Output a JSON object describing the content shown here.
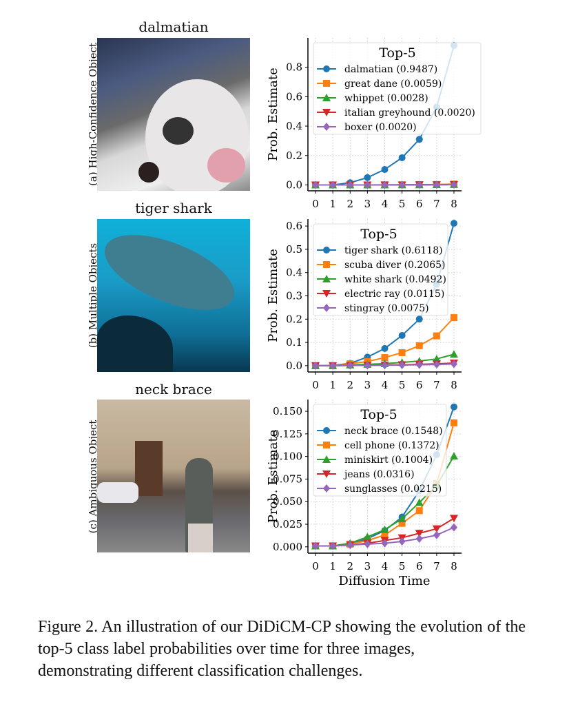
{
  "panels": [
    {
      "title": "dalmatian",
      "side_label": "(a) High-Confidence Object"
    },
    {
      "title": "tiger shark",
      "side_label": "(b) Multiple Objects"
    },
    {
      "title": "neck brace",
      "side_label": "(c) Ambiguous Object"
    }
  ],
  "colors": [
    "#1f77b4",
    "#ff7f0e",
    "#2ca02c",
    "#d62728",
    "#9467bd"
  ],
  "markers": [
    "circle",
    "square",
    "triangle-up",
    "triangle-down",
    "diamond"
  ],
  "chart_data": [
    {
      "type": "line",
      "x": [
        0,
        1,
        2,
        3,
        4,
        5,
        6,
        7,
        8
      ],
      "ylabel": "Prob. Estimate",
      "xlabel": "",
      "ylim": [
        -0.04,
        1.0
      ],
      "yticks": [
        "0.0",
        "0.2",
        "0.4",
        "0.6",
        "0.8"
      ],
      "ytick_values": [
        0,
        0.2,
        0.4,
        0.6,
        0.8
      ],
      "xticks": [
        "0",
        "1",
        "2",
        "3",
        "4",
        "5",
        "6",
        "7",
        "8"
      ],
      "grid": true,
      "legend_title": "Top-5",
      "legend_position": "top-right",
      "series": [
        {
          "name": "dalmatian (0.9487)",
          "values": [
            0,
            0,
            0.015,
            0.05,
            0.105,
            0.185,
            0.31,
            0.53,
            0.9487
          ]
        },
        {
          "name": "great dane (0.0059)",
          "values": [
            0,
            0,
            0,
            0,
            0.001,
            0.001,
            0.002,
            0.003,
            0.0059
          ]
        },
        {
          "name": "whippet (0.0028)",
          "values": [
            0,
            0,
            0,
            0,
            0,
            0.001,
            0.001,
            0.002,
            0.0028
          ]
        },
        {
          "name": "italian greyhound (0.0020)",
          "values": [
            0,
            0,
            0,
            0,
            0,
            0,
            0.001,
            0.001,
            0.002
          ]
        },
        {
          "name": "boxer (0.0020)",
          "values": [
            0,
            0,
            0,
            0,
            0,
            0,
            0.001,
            0.001,
            0.002
          ]
        }
      ]
    },
    {
      "type": "line",
      "x": [
        0,
        1,
        2,
        3,
        4,
        5,
        6,
        7,
        8
      ],
      "ylabel": "Prob. Estimate",
      "xlabel": "",
      "ylim": [
        -0.027,
        0.63
      ],
      "yticks": [
        "0.0",
        "0.1",
        "0.2",
        "0.3",
        "0.4",
        "0.5",
        "0.6"
      ],
      "ytick_values": [
        0,
        0.1,
        0.2,
        0.3,
        0.4,
        0.5,
        0.6
      ],
      "xticks": [
        "0",
        "1",
        "2",
        "3",
        "4",
        "5",
        "6",
        "7",
        "8"
      ],
      "grid": true,
      "legend_title": "Top-5",
      "legend_position": "top-right",
      "series": [
        {
          "name": "tiger shark (0.6118)",
          "values": [
            0,
            0.001,
            0.01,
            0.037,
            0.074,
            0.13,
            0.2,
            0.35,
            0.6118
          ]
        },
        {
          "name": "scuba diver (0.2065)",
          "values": [
            0,
            0,
            0.008,
            0.018,
            0.035,
            0.056,
            0.086,
            0.128,
            0.2065
          ]
        },
        {
          "name": "white shark (0.0492)",
          "values": [
            0,
            0,
            0.003,
            0.006,
            0.009,
            0.014,
            0.02,
            0.029,
            0.0492
          ]
        },
        {
          "name": "electric ray (0.0115)",
          "values": [
            0,
            0,
            0.001,
            0.002,
            0.003,
            0.004,
            0.006,
            0.008,
            0.0115
          ]
        },
        {
          "name": "stingray (0.0075)",
          "values": [
            0,
            0,
            0.001,
            0.001,
            0.002,
            0.003,
            0.004,
            0.005,
            0.0075
          ]
        }
      ]
    },
    {
      "type": "line",
      "x": [
        0,
        1,
        2,
        3,
        4,
        5,
        6,
        7,
        8
      ],
      "ylabel": "Prob. Estimate",
      "xlabel": "Diffusion Time",
      "ylim": [
        -0.007,
        0.163
      ],
      "yticks": [
        "0.000",
        "0.025",
        "0.050",
        "0.075",
        "0.100",
        "0.125",
        "0.150"
      ],
      "ytick_values": [
        0,
        0.025,
        0.05,
        0.075,
        0.1,
        0.125,
        0.15
      ],
      "xticks": [
        "0",
        "1",
        "2",
        "3",
        "4",
        "5",
        "6",
        "7",
        "8"
      ],
      "grid": true,
      "legend_title": "Top-5",
      "legend_position": "top-left",
      "series": [
        {
          "name": "neck brace (0.1548)",
          "values": [
            0.001,
            0.001,
            0.003,
            0.009,
            0.018,
            0.033,
            0.062,
            0.102,
            0.1548
          ]
        },
        {
          "name": "cell phone (0.1372)",
          "values": [
            0.001,
            0.001,
            0.003,
            0.007,
            0.013,
            0.026,
            0.04,
            0.07,
            0.1372
          ]
        },
        {
          "name": "miniskirt (0.1004)",
          "values": [
            0.001,
            0.001,
            0.004,
            0.011,
            0.019,
            0.031,
            0.049,
            0.068,
            0.1004
          ]
        },
        {
          "name": "jeans (0.0316)",
          "values": [
            0.001,
            0.001,
            0.002,
            0.004,
            0.007,
            0.01,
            0.015,
            0.02,
            0.0316
          ]
        },
        {
          "name": "sunglasses (0.0215)",
          "values": [
            0.001,
            0.001,
            0.002,
            0.003,
            0.004,
            0.006,
            0.009,
            0.013,
            0.0215
          ]
        }
      ]
    }
  ],
  "caption": {
    "main": "Figure 2. An illustration of our DiDiCM-CP showing the evolution of the top-5 class label probabilities over time for three images,",
    "last": "demonstrating different classification challenges."
  }
}
